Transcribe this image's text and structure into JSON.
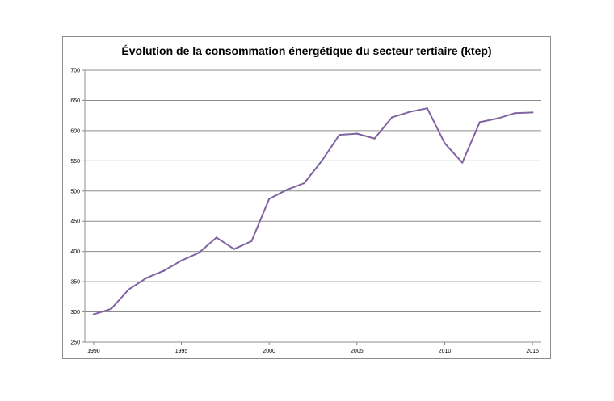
{
  "chart_data": {
    "type": "line",
    "title": "Évolution de la consommation énergétique du secteur tertiaire (ktep)",
    "xlabel": "",
    "ylabel": "",
    "ylim": [
      250,
      700
    ],
    "yticks": [
      250,
      300,
      350,
      400,
      450,
      500,
      550,
      600,
      650,
      700
    ],
    "xticks": [
      1990,
      1995,
      2000,
      2005,
      2010,
      2015
    ],
    "grid": true,
    "series": [
      {
        "color": "#8064a2",
        "x": [
          1990,
          1991,
          1992,
          1993,
          1994,
          1995,
          1996,
          1997,
          1998,
          1999,
          2000,
          2001,
          2002,
          2003,
          2004,
          2005,
          2006,
          2007,
          2008,
          2009,
          2010,
          2011,
          2012,
          2013,
          2014,
          2015
        ],
        "values": [
          296,
          305,
          337,
          356,
          368,
          385,
          398,
          423,
          404,
          417,
          487,
          502,
          513,
          550,
          593,
          595,
          587,
          622,
          631,
          637,
          579,
          547,
          614,
          620,
          629,
          630
        ]
      }
    ]
  }
}
